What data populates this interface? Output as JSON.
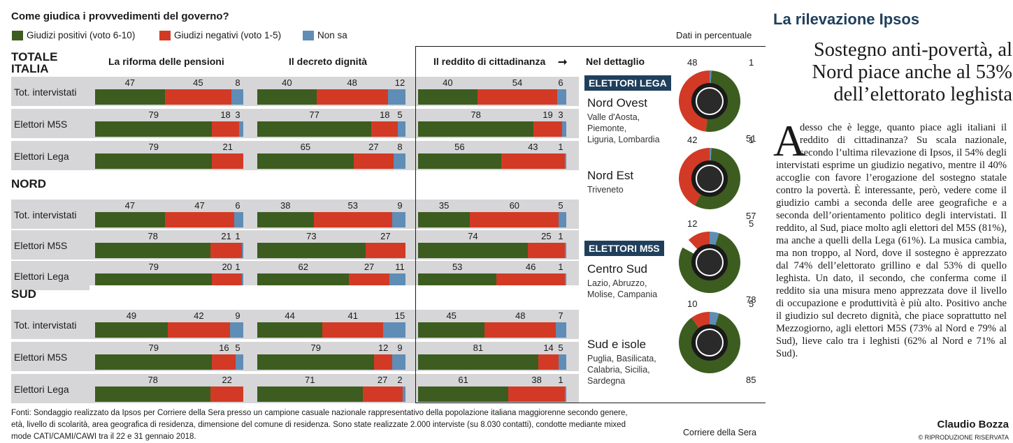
{
  "colors": {
    "positive": "#3c5d1f",
    "negative": "#d23a25",
    "nonsa": "#5f8db5",
    "badge": "#1f3f5c",
    "row_bg": "#d6d6d8"
  },
  "chart_data": {
    "type": "bar",
    "title": "Come giudica i provvedimenti del governo?",
    "unit_note": "Dati in percentuale",
    "legend": [
      "Giudizi positivi (voto 6-10)",
      "Giudizi negativi (voto 1-5)",
      "Non sa"
    ],
    "columns": [
      "La riforma delle pensioni",
      "Il decreto dignità",
      "Il reddito di cittadinanza"
    ],
    "sections": [
      {
        "name": "TOTALE ITALIA",
        "rows": [
          {
            "label": "Tot. intervistati",
            "values": [
              [
                47,
                45,
                8
              ],
              [
                40,
                48,
                12
              ],
              [
                40,
                54,
                6
              ]
            ]
          },
          {
            "label": "Elettori M5S",
            "values": [
              [
                79,
                18,
                3
              ],
              [
                77,
                18,
                5
              ],
              [
                78,
                19,
                3
              ]
            ]
          },
          {
            "label": "Elettori Lega",
            "values": [
              [
                79,
                21,
                null
              ],
              [
                65,
                27,
                8
              ],
              [
                56,
                43,
                1
              ]
            ]
          }
        ]
      },
      {
        "name": "NORD",
        "rows": [
          {
            "label": "Tot. intervistati",
            "values": [
              [
                47,
                47,
                6
              ],
              [
                38,
                53,
                9
              ],
              [
                35,
                60,
                5
              ]
            ]
          },
          {
            "label": "Elettori M5S",
            "values": [
              [
                78,
                21,
                1
              ],
              [
                73,
                27,
                null
              ],
              [
                74,
                25,
                1
              ]
            ]
          },
          {
            "label": "Elettori Lega",
            "values": [
              [
                79,
                20,
                1
              ],
              [
                62,
                27,
                11
              ],
              [
                53,
                46,
                1
              ]
            ]
          }
        ]
      },
      {
        "name": "SUD",
        "rows": [
          {
            "label": "Tot. intervistati",
            "values": [
              [
                49,
                42,
                9
              ],
              [
                44,
                41,
                15
              ],
              [
                45,
                48,
                7
              ]
            ]
          },
          {
            "label": "Elettori M5S",
            "values": [
              [
                79,
                16,
                5
              ],
              [
                79,
                12,
                9
              ],
              [
                81,
                14,
                5
              ]
            ]
          },
          {
            "label": "Elettori Lega",
            "values": [
              [
                78,
                22,
                null
              ],
              [
                71,
                27,
                2
              ],
              [
                61,
                38,
                1
              ]
            ]
          }
        ]
      }
    ],
    "detail": {
      "arrow_label": "Nel dettaglio",
      "groups": [
        {
          "badge": "ELETTORI LEGA",
          "areas": [
            {
              "name": "Nord Ovest",
              "sub": [
                "Valle d'Aosta,",
                "Piemonte,",
                "Liguria, Lombardia"
              ],
              "positive": 51,
              "negative": 48,
              "nonsa": 1
            },
            {
              "name": "Nord Est",
              "sub": [
                "Triveneto"
              ],
              "positive": 57,
              "negative": 42,
              "nonsa": 1
            }
          ]
        },
        {
          "badge": "ELETTORI M5S",
          "areas": [
            {
              "name": "Centro Sud",
              "sub": [
                "Lazio, Abruzzo,",
                "Molise, Campania"
              ],
              "positive": 78,
              "negative": 12,
              "nonsa": 5
            },
            {
              "name": "Sud e isole",
              "sub": [
                "Puglia, Basilicata,",
                "Calabria, Sicilia,",
                "Sardegna"
              ],
              "positive": 85,
              "negative": 10,
              "nonsa": 5
            }
          ]
        }
      ]
    }
  },
  "footer": {
    "sources": "Fonti: Sondaggio realizzato da Ipsos per Corriere della Sera presso un campione casuale nazionale rappresentativo della popolazione italiana maggiorenne secondo genere, età, livello di scolarità, area geografica di residenza, dimensione del comune di residenza. Sono state realizzate 2.000 interviste (su 8.030 contatti), condotte mediante mixed mode CATI/CAMI/CAWI tra il 22 e 31 gennaio 2018.",
    "credit": "Corriere della Sera"
  },
  "article": {
    "kicker": "La rilevazione Ipsos",
    "title": "Sostegno anti-povertà, al Nord piace anche al 53% dell’elettorato leghista",
    "drop_cap": "A",
    "body": "desso che è legge, quanto piace agli italiani il reddito di cittadinanza? Su scala nazionale, secondo l’ultima rilevazione di Ipsos, il 54% degli intervistati esprime un giudizio negativo, mentre il 40% accoglie con favore l’erogazione del sostegno statale contro la povertà. È interessante, però, vedere come il giudizio cambi a seconda delle aree geografiche e a seconda dell’orientamento politico degli intervistati. Il reddito, al Sud, piace molto agli elettori del M5S (81%), ma anche a quelli della Lega (61%). La musica cambia, ma non troppo, al Nord, dove il sostegno è apprezzato dal 74% dell’elettorato grillino e dal 53% di quello leghista. Un dato, il secondo, che conferma come il reddito sia una misura meno apprezzata dove il livello di occupazione e produttività è più alto. Positivo anche il giudizio sul decreto dignità, che piace soprattutto nel Mezzogiorno, agli elettori M5S (73% al Nord e 79% al Sud), lieve calo tra i leghisti (62% al Nord e 71% al Sud).",
    "byline": "Claudio Bozza",
    "rights": "© RIPRODUZIONE RISERVATA"
  }
}
